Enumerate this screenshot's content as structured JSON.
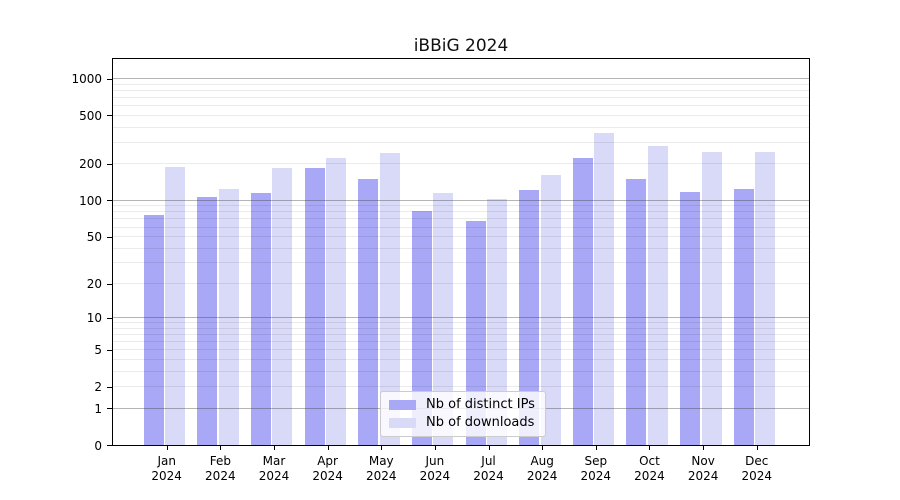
{
  "chart_data": {
    "type": "bar",
    "title": "iBBiG 2024",
    "categories": [
      "Jan",
      "Feb",
      "Mar",
      "Apr",
      "May",
      "Jun",
      "Jul",
      "Aug",
      "Sep",
      "Oct",
      "Nov",
      "Dec"
    ],
    "year_label": "2024",
    "series": [
      {
        "name": "Nb of distinct IPs",
        "color": "#a8a8f6",
        "values": [
          75,
          107,
          114,
          183,
          151,
          81,
          67,
          121,
          222,
          149,
          117,
          123
        ]
      },
      {
        "name": "Nb of downloads",
        "color": "#d9d9f8",
        "values": [
          190,
          123,
          184,
          225,
          244,
          114,
          102,
          163,
          360,
          280,
          250,
          250
        ]
      }
    ],
    "y_ticks": [
      0,
      1,
      2,
      5,
      10,
      20,
      50,
      100,
      200,
      500,
      1000
    ],
    "scale": "log10(value+1)",
    "ylim": [
      0,
      1490
    ],
    "grid": "major-and-minor-horizontal",
    "legend_position": "bottom-center-inside"
  }
}
